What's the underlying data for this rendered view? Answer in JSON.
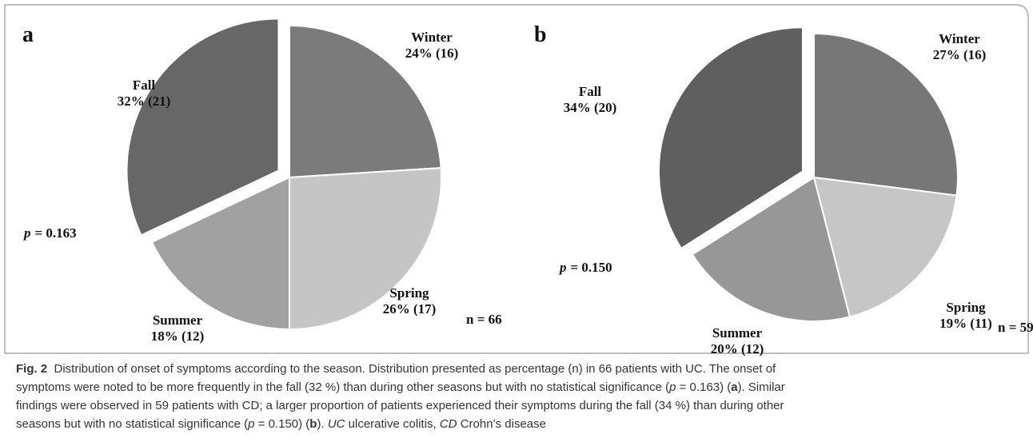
{
  "chart_data": [
    {
      "type": "pie",
      "panel": "a",
      "categories": [
        "Winter",
        "Spring",
        "Summer",
        "Fall"
      ],
      "values": [
        24,
        26,
        18,
        32
      ],
      "value_labels": [
        "24% (16)",
        "26% (17)",
        "18% (12)",
        "32% (21)"
      ],
      "colors": [
        "#7b7b7b",
        "#c5c5c5",
        "#a1a1a1",
        "#676767"
      ],
      "exploded": "Fall",
      "p_symbol": "p",
      "p_text": "= 0.163",
      "n_label": "n = 66"
    },
    {
      "type": "pie",
      "panel": "b",
      "categories": [
        "Winter",
        "Spring",
        "Summer",
        "Fall"
      ],
      "values": [
        27,
        19,
        20,
        34
      ],
      "value_labels": [
        "27% (16)",
        "19% (11)",
        "20% (12)",
        "34% (20)"
      ],
      "colors": [
        "#777777",
        "#c6c6c6",
        "#979797",
        "#5f5f5f"
      ],
      "exploded": "Fall",
      "p_symbol": "p",
      "p_text": "= 0.150",
      "n_label": "n = 59"
    }
  ],
  "caption": {
    "lines": [
      [
        {
          "text": "Fig. 2",
          "style": "bold"
        },
        {
          "text": "  Distribution of onset of symptoms according to the season. Distribution presented as percentage (n) in 66 patients with UC. The onset of"
        }
      ],
      [
        {
          "text": "symptoms were noted to be more frequently in the fall (32 %) than during other seasons but with no statistical significance ("
        },
        {
          "text": "p",
          "style": "italic"
        },
        {
          "text": " = 0.163) ("
        },
        {
          "text": "a",
          "style": "bold"
        },
        {
          "text": "). Similar"
        }
      ],
      [
        {
          "text": "findings were observed in 59 patients with CD; a larger proportion of patients experienced their symptoms during the fall (34 %) than during other"
        }
      ],
      [
        {
          "text": "seasons but with no statistical significance ("
        },
        {
          "text": "p",
          "style": "italic"
        },
        {
          "text": " = 0.150) ("
        },
        {
          "text": "b",
          "style": "bold"
        },
        {
          "text": "). "
        },
        {
          "text": "UC",
          "style": "italic"
        },
        {
          "text": " ulcerative colitis, "
        },
        {
          "text": "CD",
          "style": "italic"
        },
        {
          "text": " Crohn’s disease"
        }
      ]
    ]
  }
}
